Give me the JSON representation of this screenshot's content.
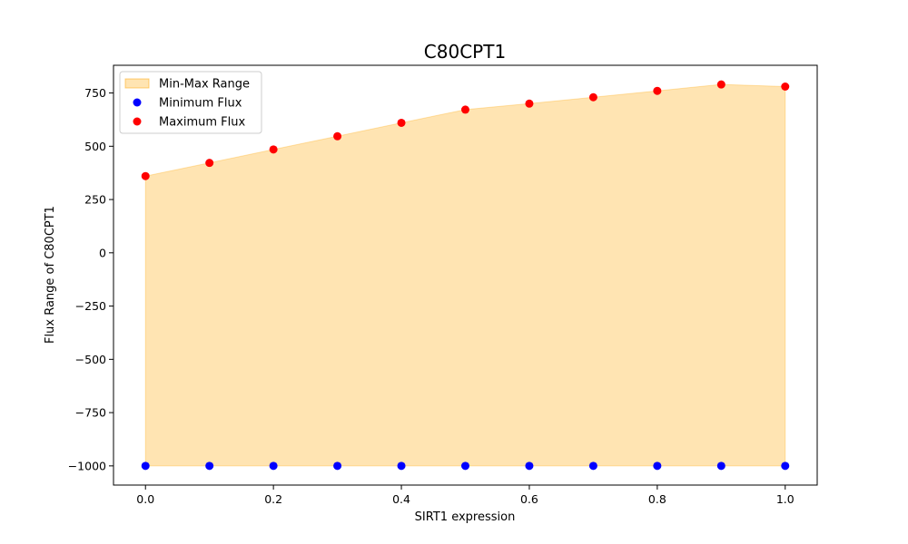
{
  "chart_data": {
    "type": "scatter",
    "title": "C80CPT1",
    "xlabel": "SIRT1 expression",
    "ylabel": "Flux Range of C80CPT1",
    "xlim": [
      -0.05,
      1.05
    ],
    "ylim": [
      -1090,
      880
    ],
    "xticks": [
      0.0,
      0.2,
      0.4,
      0.6,
      0.8,
      1.0
    ],
    "xtick_labels": [
      "0.0",
      "0.2",
      "0.4",
      "0.6",
      "0.8",
      "1.0"
    ],
    "yticks": [
      -1000,
      -750,
      -500,
      -250,
      0,
      250,
      500,
      750
    ],
    "ytick_labels": [
      "−1000",
      "−750",
      "−500",
      "−250",
      "0",
      "250",
      "500",
      "750"
    ],
    "x": [
      0.0,
      0.1,
      0.2,
      0.3,
      0.4,
      0.5,
      0.6,
      0.7,
      0.8,
      0.9,
      1.0
    ],
    "series": [
      {
        "name": "Minimum Flux",
        "kind": "points",
        "color": "#0000ff",
        "values": [
          -1000,
          -1000,
          -1000,
          -1000,
          -1000,
          -1000,
          -1000,
          -1000,
          -1000,
          -1000,
          -1000
        ]
      },
      {
        "name": "Maximum Flux",
        "kind": "points",
        "color": "#ff0000",
        "values": [
          360,
          422,
          485,
          547,
          610,
          672,
          700,
          730,
          760,
          790,
          780
        ]
      }
    ],
    "fill": {
      "name": "Min-Max Range",
      "color": "#ffa500",
      "opacity": 0.3
    },
    "legend": {
      "placement": "top-left",
      "entries": [
        "Min-Max Range",
        "Minimum Flux",
        "Maximum Flux"
      ]
    },
    "grid": false
  }
}
